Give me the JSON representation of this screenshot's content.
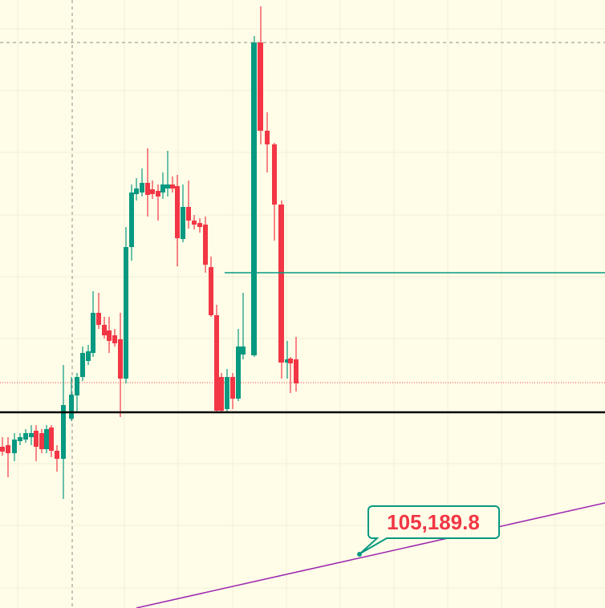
{
  "annotation": {
    "label": "105,189.8"
  }
}
